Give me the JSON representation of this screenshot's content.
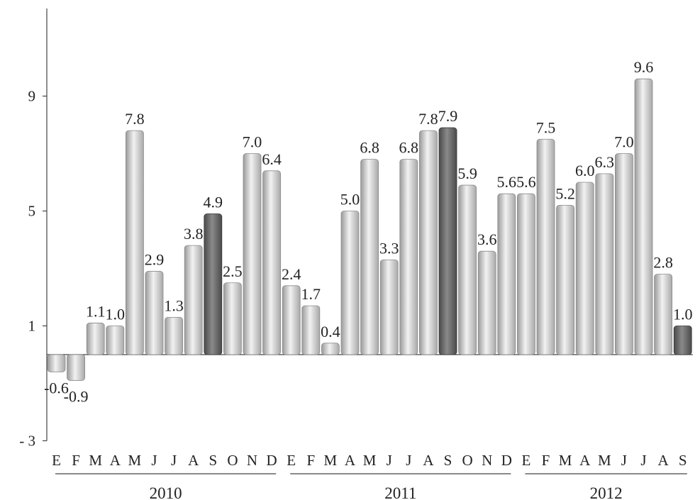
{
  "chart_data": {
    "type": "bar",
    "title": "",
    "xlabel": "",
    "ylabel": "",
    "ylim": [
      -3,
      12
    ],
    "yticks": [
      -3,
      1,
      5,
      9
    ],
    "ytick_labels": [
      "- 3",
      "1",
      "5",
      "9"
    ],
    "grid": false,
    "legend": "none",
    "groups": [
      {
        "label": "2010",
        "categories": [
          "E",
          "F",
          "M",
          "A",
          "M",
          "J",
          "J",
          "A",
          "S",
          "O",
          "N",
          "D"
        ]
      },
      {
        "label": "2011",
        "categories": [
          "E",
          "F",
          "M",
          "A",
          "M",
          "J",
          "J",
          "A",
          "S",
          "O",
          "N",
          "D"
        ]
      },
      {
        "label": "2012",
        "categories": [
          "E",
          "F",
          "M",
          "A",
          "M",
          "J",
          "J",
          "A",
          "S"
        ]
      }
    ],
    "values": [
      -0.6,
      -0.9,
      1.1,
      1.0,
      7.8,
      2.9,
      1.3,
      3.8,
      4.9,
      2.5,
      7.0,
      6.4,
      2.4,
      1.7,
      0.4,
      5.0,
      6.8,
      3.3,
      6.8,
      7.8,
      7.9,
      5.9,
      3.6,
      5.6,
      5.6,
      7.5,
      5.2,
      6.0,
      6.3,
      7.0,
      9.6,
      2.8,
      1.0
    ],
    "value_labels": [
      "-0.6",
      "-0.9",
      "1.1",
      "1.0",
      "7.8",
      "2.9",
      "1.3",
      "3.8",
      "4.9",
      "2.5",
      "7.0",
      "6.4",
      "2.4",
      "1.7",
      "0.4",
      "5.0",
      "6.8",
      "3.3",
      "6.8",
      "7.8",
      "7.9",
      "5.9",
      "3.6",
      "5.6",
      "5.6",
      "7.5",
      "5.2",
      "6.0",
      "6.3",
      "7.0",
      "9.6",
      "2.8",
      "1.0"
    ],
    "highlighted_indices": [
      8,
      20,
      32
    ],
    "colors": {
      "bar_light": "#d6d6d6",
      "bar_light_edge": "#8a8a8a",
      "bar_dark": "#6e6e6e",
      "bar_dark_edge": "#3a3a3a",
      "axis": "#444444"
    }
  }
}
